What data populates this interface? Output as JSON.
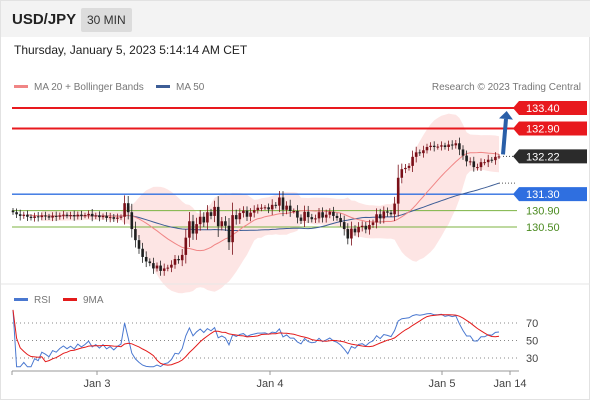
{
  "header": {
    "symbol": "USD/JPY",
    "timeframe": "30 MIN"
  },
  "datetime": "Thursday, January 5, 2023 5:14:14 AM CET",
  "legend": {
    "ma20": "MA 20 + Bollinger Bands",
    "ma50": "MA 50",
    "credit": "Research © 2023 Trading Central",
    "rsi": "RSI",
    "ma9": "9MA"
  },
  "colors": {
    "resistance": "#e8191e",
    "support": "#2f6fe0",
    "target_green": "#7cb342",
    "bull": "#7a0f18",
    "bear": "#1f1f1f",
    "arrow": "#2a5fa8",
    "ma20": "#f08585",
    "ma50": "#3d5d96",
    "bands": "#fde0df",
    "rsi": "#4a78d0",
    "ma9": "#e31b1b"
  },
  "chart_data": [
    {
      "type": "candlestick",
      "y_range": [
        129.2,
        133.7
      ],
      "x_labels": [
        "Jan 3",
        "Jan 4",
        "Jan 5",
        "Jan 14"
      ],
      "levels": [
        {
          "value": 133.4,
          "label": "133.40",
          "kind": "resistance"
        },
        {
          "value": 132.9,
          "label": "132.90",
          "kind": "resistance"
        },
        {
          "value": 132.22,
          "label": "132.22",
          "kind": "last_price"
        },
        {
          "value": 131.3,
          "label": "131.30",
          "kind": "support"
        },
        {
          "value": 130.9,
          "label": "130.90",
          "kind": "target"
        },
        {
          "value": 130.5,
          "label": "130.50",
          "kind": "target"
        }
      ],
      "close": [
        130.86,
        130.81,
        130.77,
        130.8,
        130.75,
        130.72,
        130.76,
        130.74,
        130.78,
        130.76,
        130.73,
        130.77,
        130.75,
        130.78,
        130.8,
        130.77,
        130.79,
        130.76,
        130.8,
        130.77,
        130.79,
        130.82,
        130.76,
        130.78,
        130.74,
        130.77,
        130.72,
        130.74,
        130.7,
        130.73,
        130.75,
        131.08,
        130.86,
        130.45,
        130.18,
        129.97,
        129.77,
        129.66,
        129.62,
        129.49,
        129.56,
        129.43,
        129.49,
        129.51,
        129.58,
        129.72,
        129.69,
        129.82,
        130.24,
        130.64,
        130.34,
        130.57,
        130.75,
        130.61,
        130.86,
        130.77,
        130.99,
        130.52,
        130.64,
        130.53,
        130.13,
        130.79,
        130.69,
        130.84,
        130.9,
        130.75,
        130.85,
        130.91,
        130.97,
        130.97,
        130.98,
        130.93,
        131.04,
        131.02,
        131.22,
        130.92,
        131.02,
        130.89,
        130.89,
        130.73,
        130.65,
        130.87,
        130.74,
        130.69,
        130.71,
        130.86,
        130.73,
        130.8,
        130.87,
        130.77,
        130.72,
        130.62,
        130.45,
        130.22,
        130.46,
        130.37,
        130.5,
        130.53,
        130.44,
        130.55,
        130.61,
        130.81,
        130.71,
        130.88,
        130.85,
        130.81,
        131.07,
        131.7,
        131.91,
        131.94,
        131.99,
        132.21,
        132.32,
        132.3,
        132.37,
        132.45,
        132.48,
        132.45,
        132.46,
        132.49,
        132.45,
        132.51,
        132.49,
        132.54,
        132.39,
        132.24,
        132.1,
        132.1,
        131.96,
        131.96,
        132.08,
        132.08,
        132.14,
        132.13,
        132.21,
        132.22
      ]
    },
    {
      "type": "line",
      "name": "RSI",
      "y_ticks": [
        30,
        50,
        70
      ]
    }
  ]
}
